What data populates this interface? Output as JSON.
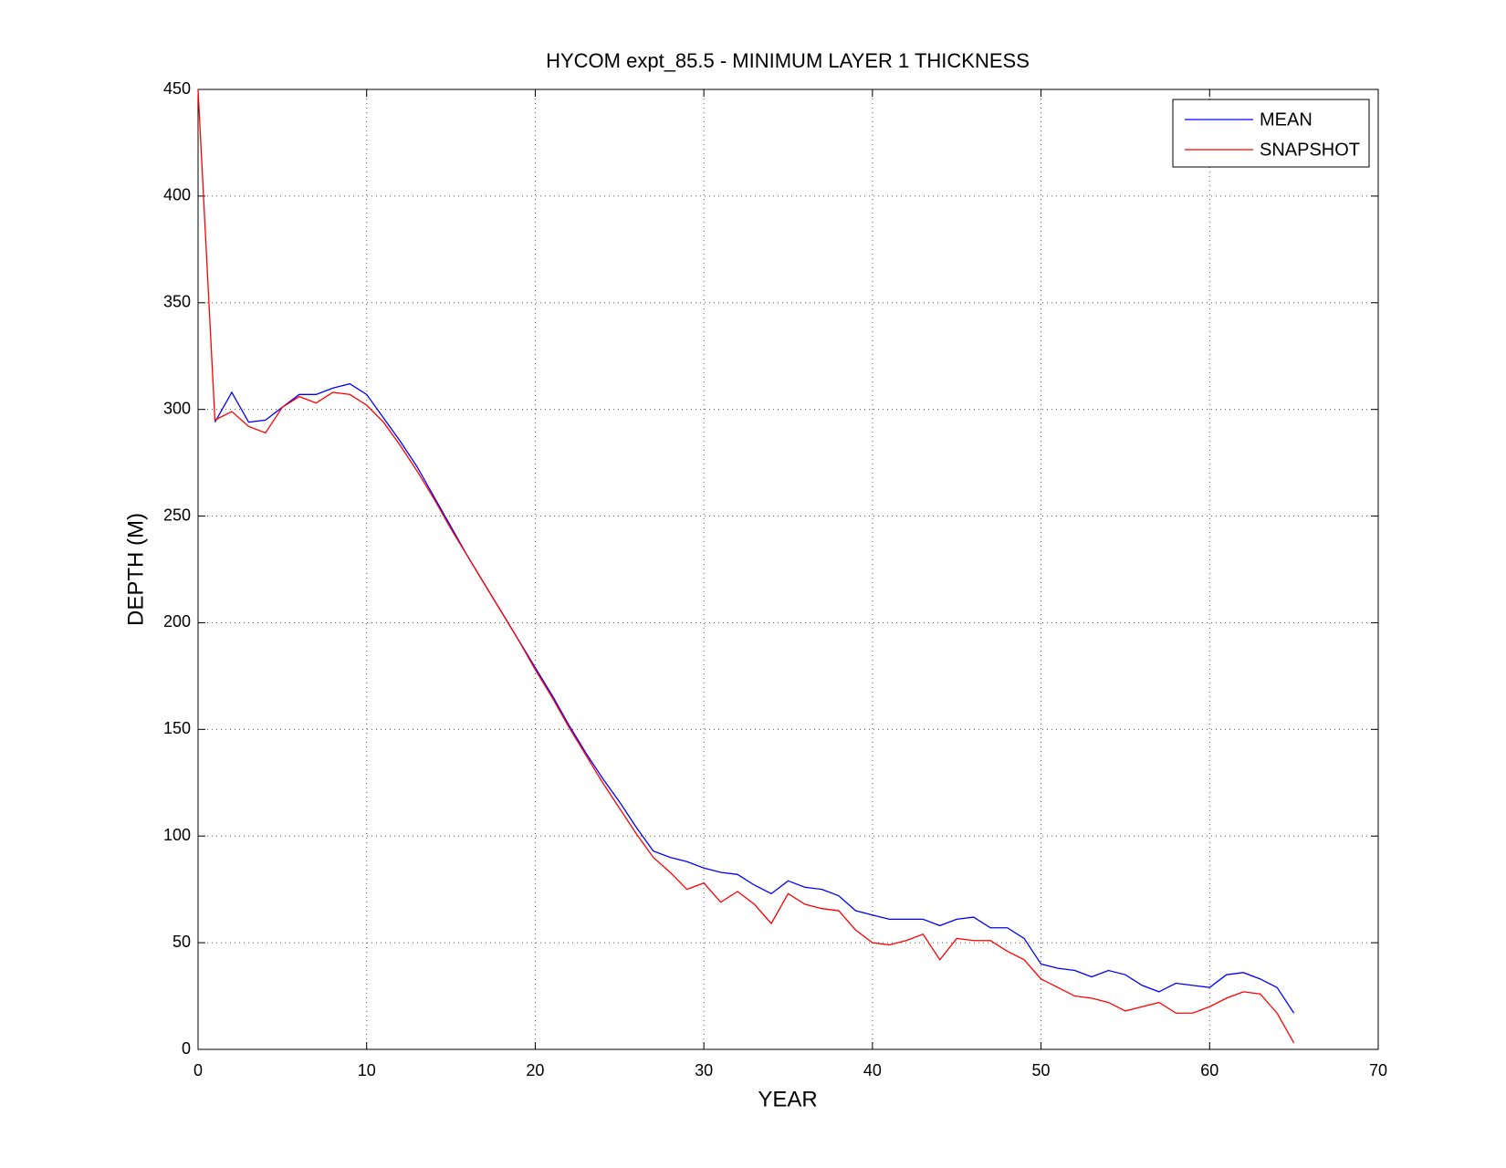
{
  "chart_data": {
    "type": "line",
    "title": "HYCOM expt_85.5 - MINIMUM LAYER 1 THICKNESS",
    "x_label": "YEAR",
    "y_label": "DEPTH (M)",
    "x": [
      0,
      1,
      2,
      3,
      4,
      5,
      6,
      7,
      8,
      9,
      10,
      11,
      12,
      13,
      14,
      15,
      16,
      17,
      18,
      19,
      20,
      21,
      22,
      23,
      24,
      25,
      26,
      27,
      28,
      29,
      30,
      31,
      32,
      33,
      34,
      35,
      36,
      37,
      38,
      39,
      40,
      41,
      42,
      43,
      44,
      45,
      46,
      47,
      48,
      49,
      50,
      51,
      52,
      53,
      54,
      55,
      56,
      57,
      58,
      59,
      60,
      61,
      62,
      63,
      64,
      65
    ],
    "series": [
      {
        "name": "MEAN",
        "color": "#0000ff",
        "values": [
          null,
          294,
          308,
          294,
          295,
          301,
          307,
          307,
          310,
          312,
          307,
          296,
          285,
          273,
          259,
          245,
          231,
          218,
          205,
          192,
          179,
          166,
          152,
          139,
          127,
          116,
          104,
          93,
          90,
          88,
          85,
          83,
          82,
          77,
          73,
          79,
          76,
          75,
          72,
          65,
          63,
          61,
          61,
          61,
          58,
          61,
          62,
          57,
          57,
          52,
          40,
          38,
          37,
          34,
          37,
          35,
          30,
          27,
          31,
          30,
          29,
          35,
          36,
          33,
          29,
          17
        ]
      },
      {
        "name": "SNAPSHOT",
        "color": "#ff0000",
        "values": [
          450,
          295,
          299,
          292,
          289,
          301,
          306,
          303,
          308,
          307,
          302,
          294,
          283,
          271,
          258,
          244,
          231,
          218,
          205,
          192,
          178,
          165,
          151,
          138,
          125,
          113,
          101,
          90,
          83,
          75,
          78,
          69,
          74,
          68,
          59,
          73,
          68,
          66,
          65,
          56,
          50,
          49,
          51,
          54,
          42,
          52,
          51,
          51,
          46,
          42,
          33,
          29,
          25,
          24,
          22,
          18,
          20,
          22,
          17,
          17,
          20,
          24,
          27,
          26,
          17,
          3
        ]
      }
    ],
    "xlim": [
      0,
      70
    ],
    "xticks": [
      0,
      10,
      20,
      30,
      40,
      50,
      60,
      70
    ],
    "ylim": [
      0,
      450
    ],
    "yticks": [
      0,
      50,
      100,
      150,
      200,
      250,
      300,
      350,
      400,
      450
    ],
    "grid": true,
    "legend": "upper right"
  }
}
